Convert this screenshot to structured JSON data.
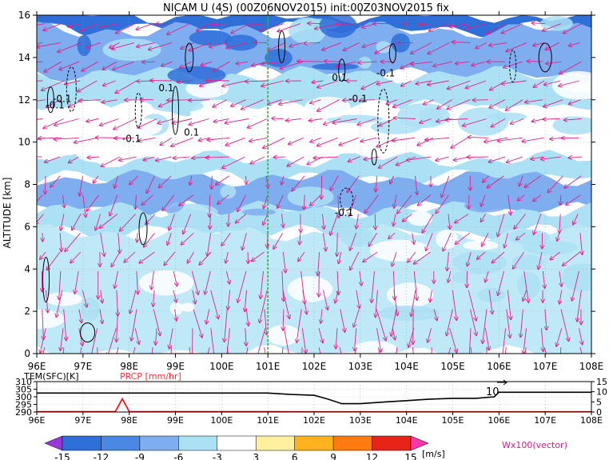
{
  "chart_data": [
    {
      "type": "heatmap",
      "title": "NICAM U (4S) (00Z06NOV2015) init:00Z03NOV2015 fix",
      "ylabel": "ALTITUDE [km]",
      "xlabel": "",
      "xlim": [
        96,
        108
      ],
      "ylim": [
        0,
        16
      ],
      "x_tick_labels": [
        "96E",
        "97E",
        "98E",
        "99E",
        "100E",
        "101E",
        "102E",
        "103E",
        "104E",
        "105E",
        "106E",
        "107E",
        "108E"
      ],
      "y_ticks": [
        0,
        2,
        4,
        6,
        8,
        10,
        12,
        14,
        16
      ],
      "grid": true,
      "reference_line_x": 101,
      "contour_labels": [
        {
          "text": "-0.1",
          "x": 96.4,
          "y": 11.6
        },
        {
          "text": "-0.1",
          "x": 96.55,
          "y": 11.9
        },
        {
          "text": "0.1",
          "x": 98.8,
          "y": 12.4
        },
        {
          "text": "0.1",
          "x": 99.35,
          "y": 10.3
        },
        {
          "text": "-0.1",
          "x": 98.05,
          "y": 10.0
        },
        {
          "text": "0.1",
          "x": 102.55,
          "y": 12.9
        },
        {
          "text": "-0.1",
          "x": 103.55,
          "y": 13.1
        },
        {
          "text": "-0.1",
          "x": 102.95,
          "y": 11.9
        },
        {
          "text": "-0.1",
          "x": 102.65,
          "y": 6.5
        }
      ],
      "shading_bands": [
        {
          "z0": 15.3,
          "z1": 16.0,
          "level": -12
        },
        {
          "z0": 13.2,
          "z1": 15.3,
          "level": -6
        },
        {
          "z0": 11.6,
          "z1": 13.2,
          "level": -3
        },
        {
          "z0": 9.2,
          "z1": 11.6,
          "level": 0
        },
        {
          "z0": 8.3,
          "z1": 9.2,
          "level": -3
        },
        {
          "z0": 6.8,
          "z1": 8.3,
          "level": -6
        },
        {
          "z0": 5.7,
          "z1": 6.8,
          "level": -3
        },
        {
          "z0": 0.0,
          "z1": 5.7,
          "level": -1
        }
      ]
    },
    {
      "type": "line",
      "series": [
        {
          "name": "TEM(SFC)[K]",
          "color": "#000000",
          "x": [
            96,
            97,
            98,
            99,
            100,
            101,
            101.5,
            102,
            102.3,
            102.6,
            103,
            103.5,
            104,
            104.5,
            105,
            105.5,
            105.9,
            106,
            107,
            108
          ],
          "values": [
            302.5,
            302.5,
            302.5,
            302.5,
            302.5,
            302.5,
            301.5,
            301.0,
            298.5,
            295.5,
            295.5,
            296.5,
            297.5,
            298.5,
            299.0,
            299.0,
            300.0,
            303.0,
            303.0,
            303.0
          ]
        },
        {
          "name": "PRCP [mm/hr]",
          "color": "#ff0000",
          "x": [
            96,
            97,
            97.7,
            97.85,
            98,
            99,
            100,
            101,
            102,
            103,
            104,
            105,
            106,
            107,
            108
          ],
          "values": [
            0.2,
            0.2,
            0.2,
            6.5,
            0.2,
            0.2,
            0.2,
            0.2,
            0.1,
            0.1,
            0.1,
            0.1,
            0.1,
            0.1,
            0.1
          ]
        }
      ],
      "left_axis_ticks": [
        "310",
        "305",
        "300",
        "295",
        "290"
      ],
      "right_axis_ticks": [
        "15",
        "10",
        "5",
        "0"
      ],
      "left_ylim": [
        290,
        310
      ],
      "right_ylim": [
        0,
        15
      ],
      "annotation": "10",
      "xlim": [
        96,
        108
      ],
      "x_tick_labels": [
        "96E",
        "97E",
        "98E",
        "99E",
        "100E",
        "101E",
        "102E",
        "103E",
        "104E",
        "105E",
        "106E",
        "107E",
        "108E"
      ],
      "legend": [
        {
          "label": "TEM(SFC)[K]",
          "color": "#000000"
        },
        {
          "label": "PRCP [mm/hr]",
          "color": "#ff0000"
        }
      ]
    }
  ],
  "colorbar": {
    "levels": [
      "-15",
      "-12",
      "-9",
      "-6",
      "-3",
      "3",
      "6",
      "9",
      "12",
      "15"
    ],
    "colors": [
      "#9b36d6",
      "#2f6fd9",
      "#4b88e6",
      "#7eaef0",
      "#abe0f5",
      "#ffffff",
      "#fff0a0",
      "#ffb21e",
      "#ff7b10",
      "#e82418",
      "#b4001a",
      "#ff33aa"
    ],
    "unit": "[m/s]"
  },
  "vector_label": "Wx100(vector)"
}
